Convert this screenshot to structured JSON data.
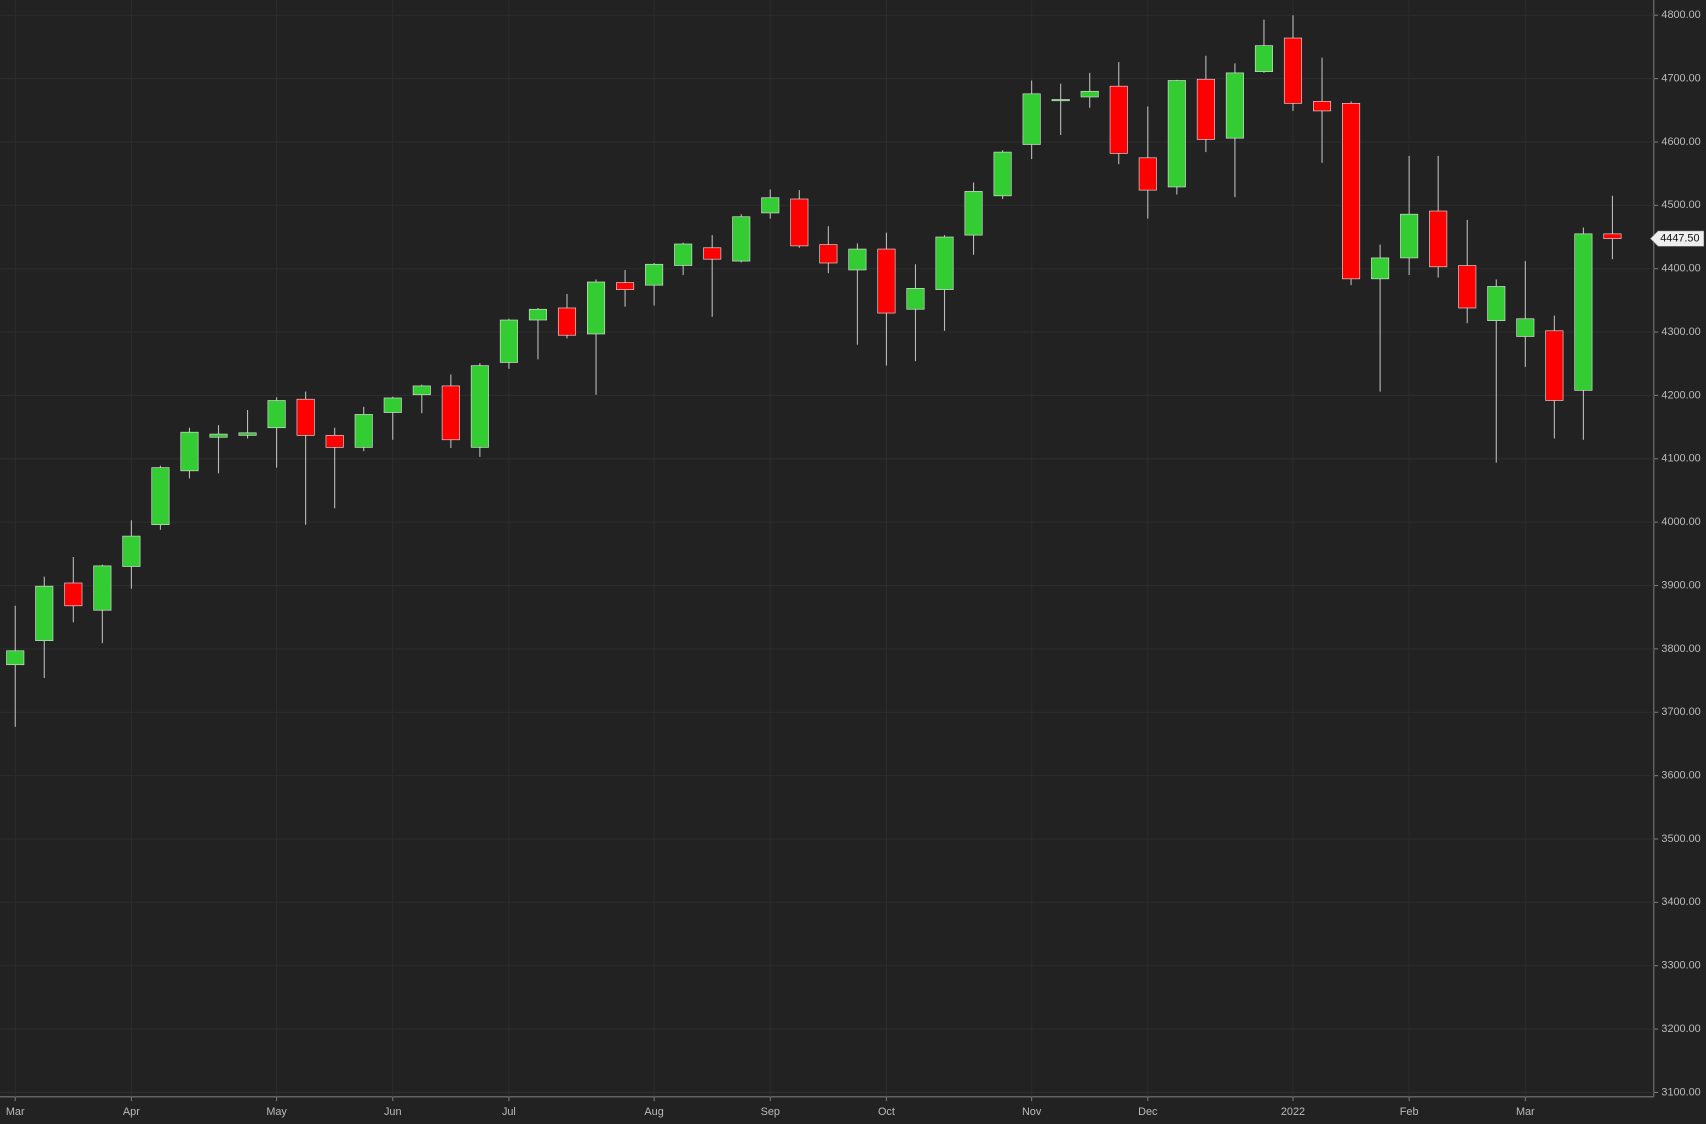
{
  "chart_data": {
    "type": "candlestick",
    "categories": [
      "Mar",
      null,
      null,
      null,
      "Apr",
      null,
      null,
      null,
      null,
      "May",
      null,
      null,
      null,
      "Jun",
      null,
      null,
      null,
      "Jul",
      null,
      null,
      null,
      null,
      "Aug",
      null,
      null,
      null,
      "Sep",
      null,
      null,
      null,
      "Oct",
      null,
      null,
      null,
      null,
      "Nov",
      null,
      null,
      null,
      "Dec",
      null,
      null,
      null,
      null,
      "2022",
      null,
      null,
      null,
      "Feb",
      null,
      null,
      null,
      "Mar",
      null,
      null,
      null
    ],
    "open": [
      3775,
      3813,
      3904,
      3861,
      3930,
      3996,
      4081,
      4134,
      4137,
      4149,
      4194,
      4137,
      4118,
      4173,
      4201,
      4215,
      4118,
      4252,
      4319,
      4338,
      4297,
      4378,
      4374,
      4405,
      4433,
      4412,
      4488,
      4510,
      4438,
      4398,
      4431,
      4336,
      4367,
      4453,
      4515,
      4596,
      4665,
      4671,
      4688,
      4575,
      4529,
      4699,
      4606,
      4711,
      4764,
      4664,
      4661,
      4384,
      4417,
      4491,
      4405,
      4318,
      4293,
      4302,
      4208,
      4455
    ],
    "high": [
      3868,
      3914,
      3945,
      3933,
      4003,
      4089,
      4149,
      4153,
      4177,
      4197,
      4206,
      4149,
      4182,
      4198,
      4217,
      4233,
      4251,
      4321,
      4338,
      4360,
      4383,
      4398,
      4409,
      4441,
      4453,
      4486,
      4525,
      4524,
      4467,
      4440,
      4457,
      4407,
      4453,
      4536,
      4587,
      4697,
      4692,
      4709,
      4726,
      4656,
      4698,
      4736,
      4724,
      4793,
      4800,
      4733,
      4664,
      4438,
      4578,
      4578,
      4477,
      4383,
      4412,
      4326,
      4465,
      4515
    ],
    "low": [
      3677,
      3754,
      3842,
      3809,
      3895,
      3988,
      4069,
      4077,
      4132,
      4086,
      3996,
      4022,
      4112,
      4130,
      4172,
      4117,
      4103,
      4242,
      4257,
      4290,
      4201,
      4340,
      4342,
      4390,
      4324,
      4410,
      4479,
      4433,
      4393,
      4280,
      4247,
      4254,
      4302,
      4422,
      4510,
      4573,
      4611,
      4654,
      4565,
      4479,
      4517,
      4584,
      4513,
      4709,
      4649,
      4567,
      4374,
      4206,
      4390,
      4386,
      4314,
      4094,
      4245,
      4132,
      4130,
      4415
    ],
    "close": [
      3797,
      3899,
      3868,
      3931,
      3978,
      4086,
      4142,
      4139,
      4141,
      4192,
      4137,
      4118,
      4170,
      4196,
      4215,
      4130,
      4247,
      4319,
      4336,
      4295,
      4379,
      4367,
      4407,
      4439,
      4415,
      4482,
      4512,
      4436,
      4409,
      4431,
      4330,
      4369,
      4450,
      4522,
      4584,
      4676,
      4667,
      4680,
      4582,
      4524,
      4697,
      4604,
      4709,
      4752,
      4661,
      4649,
      4384,
      4417,
      4486,
      4403,
      4338,
      4372,
      4321,
      4192,
      4455,
      4447.5
    ],
    "up_color": "#33cc33",
    "down_color": "#ff0000",
    "wick_color": "#bbbbbb",
    "ylim": [
      3100,
      4800
    ],
    "yticks": [
      {
        "value": 3100,
        "label": "3100.00"
      },
      {
        "value": 3200,
        "label": "3200.00"
      },
      {
        "value": 3300,
        "label": "3300.00"
      },
      {
        "value": 3400,
        "label": "3400.00"
      },
      {
        "value": 3500,
        "label": "3500.00"
      },
      {
        "value": 3600,
        "label": "3600.00"
      },
      {
        "value": 3700,
        "label": "3700.00"
      },
      {
        "value": 3800,
        "label": "3800.00"
      },
      {
        "value": 3900,
        "label": "3900.00"
      },
      {
        "value": 4000,
        "label": "4000.00"
      },
      {
        "value": 4100,
        "label": "4100.00"
      },
      {
        "value": 4200,
        "label": "4200.00"
      },
      {
        "value": 4300,
        "label": "4300.00"
      },
      {
        "value": 4400,
        "label": "4400.00"
      },
      {
        "value": 4500,
        "label": "4500.00"
      },
      {
        "value": 4600,
        "label": "4600.00"
      },
      {
        "value": 4700,
        "label": "4700.00"
      },
      {
        "value": 4800,
        "label": "4800.00"
      }
    ],
    "last_price": {
      "value": 4447.5,
      "label": "4447.50"
    },
    "grid": true
  }
}
